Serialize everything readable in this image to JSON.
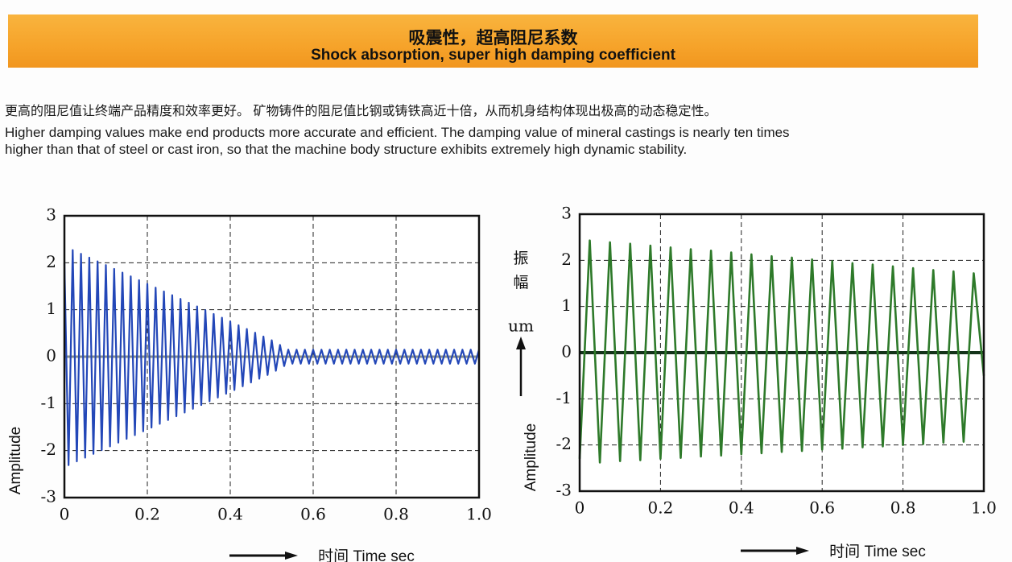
{
  "header": {
    "title": "吸震性，超高阻尼系数",
    "subtitle": "Shock absorption, super high damping coefficient"
  },
  "intro": {
    "cn": "更高的阻尼值让终端产品精度和效率更好。  矿物铸件的阻尼值比钢或铸铁高近十倍，从而机身结构体现出极高的动态稳定性。",
    "en": [
      "Higher damping values make end products more accurate and efficient. The damping value of mineral castings is nearly ten times",
      "higher than that of steel or cast iron, so that the machine body structure exhibits extremely high dynamic stability."
    ]
  },
  "chart_data": [
    {
      "type": "line",
      "x_label": "时间 Time  sec",
      "y_label": "Amplitude",
      "xlim": [
        0,
        1
      ],
      "ylim": [
        -3,
        3
      ],
      "xticks": [
        0,
        0.2,
        0.4,
        0.6,
        0.8,
        {
          "value": 1,
          "label": "1.0"
        }
      ],
      "yticks": [
        -3,
        -2,
        -1,
        0,
        1,
        2,
        3
      ],
      "grid": true,
      "x": [
        0,
        0.01,
        0.02,
        0.03,
        0.04,
        0.05,
        0.06,
        0.07,
        0.08,
        0.09,
        0.1,
        0.11,
        0.12,
        0.13,
        0.14,
        0.15,
        0.16,
        0.17,
        0.18,
        0.19,
        0.2,
        0.21,
        0.22,
        0.23,
        0.24,
        0.25,
        0.26,
        0.27,
        0.28,
        0.29,
        0.3,
        0.31,
        0.32,
        0.33,
        0.34,
        0.35,
        0.36,
        0.37,
        0.38,
        0.39,
        0.4,
        0.41,
        0.42,
        0.43,
        0.44,
        0.45,
        0.46,
        0.47,
        0.48,
        0.49,
        0.5,
        0.51,
        0.52,
        0.53,
        0.54,
        0.55,
        0.56,
        0.57,
        0.58,
        0.59,
        0.6,
        0.61,
        0.62,
        0.63,
        0.64,
        0.65,
        0.66,
        0.67,
        0.68,
        0.69,
        0.7,
        0.71,
        0.72,
        0.73,
        0.74,
        0.75,
        0.76,
        0.77,
        0.78,
        0.79,
        0.8,
        0.81,
        0.82,
        0.83,
        0.84,
        0.85,
        0.86,
        0.87,
        0.88,
        0.89,
        0.9,
        0.91,
        0.92,
        0.93,
        0.94,
        0.95,
        0.96,
        0.97,
        0.98,
        0.99,
        1
      ],
      "series": [
        {
          "color": "#2347b8",
          "values": [
            2.0,
            -2.31,
            2.27,
            -2.23,
            2.19,
            -2.15,
            2.11,
            -2.07,
            2.03,
            -1.99,
            1.95,
            -1.91,
            1.87,
            -1.83,
            1.79,
            -1.75,
            1.71,
            -1.67,
            1.63,
            -1.59,
            1.55,
            -1.51,
            1.47,
            -1.43,
            1.39,
            -1.35,
            1.31,
            -1.27,
            1.23,
            -1.19,
            1.15,
            -1.11,
            1.07,
            -1.03,
            0.99,
            -0.95,
            0.91,
            -0.87,
            0.83,
            -0.79,
            0.75,
            -0.71,
            0.67,
            -0.63,
            0.59,
            -0.55,
            0.51,
            -0.47,
            0.43,
            -0.39,
            0.35,
            -0.3,
            0.25,
            -0.2,
            0.15,
            -0.15,
            0.15,
            -0.15,
            0.15,
            -0.15,
            0.15,
            -0.15,
            0.15,
            -0.15,
            0.15,
            -0.15,
            0.15,
            -0.15,
            0.15,
            -0.15,
            0.15,
            -0.15,
            0.15,
            -0.15,
            0.15,
            -0.15,
            0.15,
            -0.15,
            0.15,
            -0.15,
            0.15,
            -0.15,
            0.15,
            -0.15,
            0.15,
            -0.15,
            0.15,
            -0.15,
            0.15,
            -0.15,
            0.15,
            -0.15,
            0.15,
            -0.15,
            0.15,
            -0.15,
            0.15,
            -0.15,
            0.15,
            -0.15,
            0.15
          ]
        }
      ],
      "zero_line_color": "#8a8f86"
    },
    {
      "type": "line",
      "x_label": "时间 Time  sec",
      "y_label": "Amplitude",
      "y_label_cn": "振幅",
      "y_unit": "um",
      "xlim": [
        0,
        1
      ],
      "ylim": [
        -3,
        3
      ],
      "xticks": [
        0,
        0.2,
        0.4,
        0.6,
        0.8,
        {
          "value": 1,
          "label": "1.0"
        }
      ],
      "yticks": [
        -3,
        -2,
        -1,
        0,
        1,
        2,
        3
      ],
      "grid": true,
      "x": [
        0,
        0.025,
        0.05,
        0.075,
        0.1,
        0.125,
        0.15,
        0.175,
        0.2,
        0.225,
        0.25,
        0.275,
        0.3,
        0.325,
        0.35,
        0.375,
        0.4,
        0.425,
        0.45,
        0.475,
        0.5,
        0.525,
        0.55,
        0.575,
        0.6,
        0.625,
        0.65,
        0.675,
        0.7,
        0.725,
        0.75,
        0.775,
        0.8,
        0.825,
        0.85,
        0.875,
        0.9,
        0.925,
        0.95,
        0.975,
        1
      ],
      "series": [
        {
          "color": "#2e7a2a",
          "values": [
            -2.3,
            2.43,
            -2.38,
            2.39,
            -2.35,
            2.36,
            -2.33,
            2.32,
            -2.3,
            2.28,
            -2.28,
            2.24,
            -2.25,
            2.21,
            -2.23,
            2.17,
            -2.2,
            2.13,
            -2.18,
            2.09,
            -2.15,
            2.06,
            -2.13,
            2.02,
            -2.1,
            1.98,
            -2.08,
            1.94,
            -2.05,
            1.91,
            -2.03,
            1.87,
            -2.0,
            1.83,
            -1.98,
            1.79,
            -1.95,
            1.76,
            -1.93,
            1.72,
            -0.5
          ]
        }
      ],
      "zero_line_color": "#14331a"
    }
  ]
}
